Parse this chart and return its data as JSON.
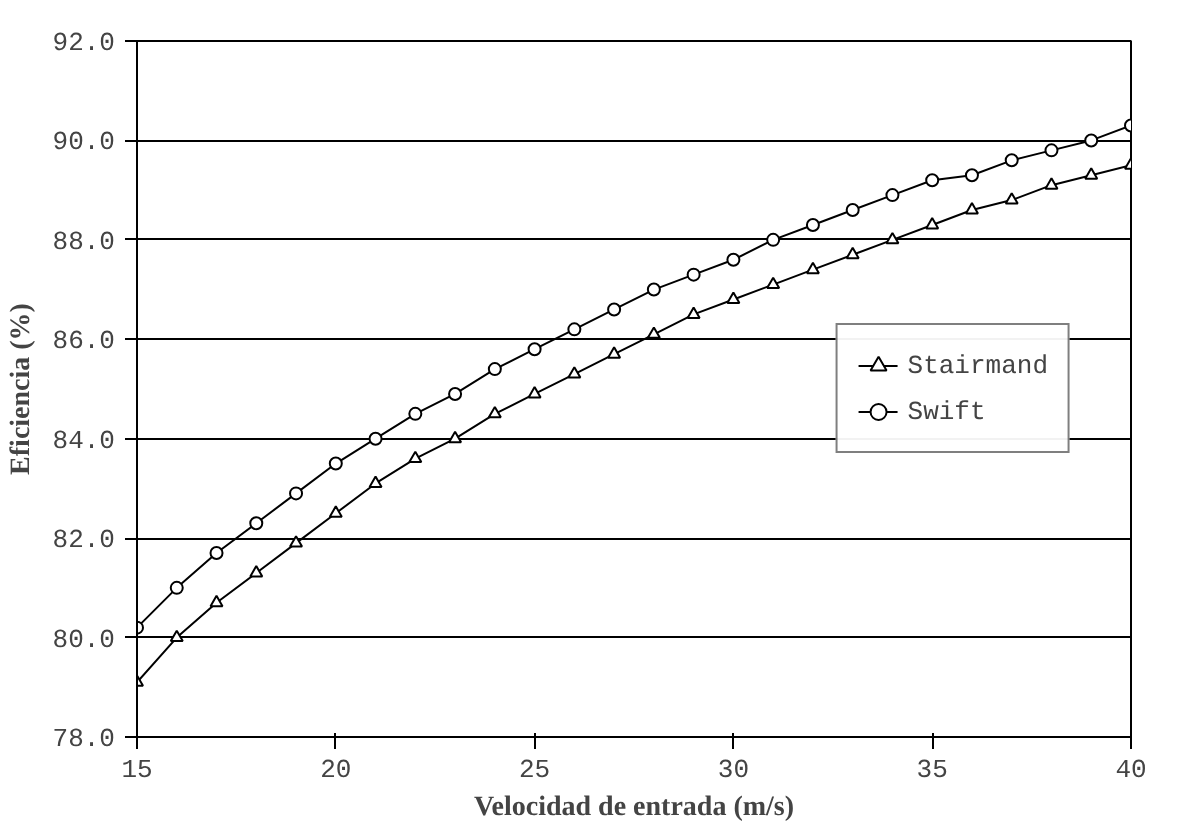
{
  "chart_data": {
    "type": "line",
    "xlabel": "Velocidad de entrada (m/s)",
    "ylabel": "Eficiencia (%)",
    "x": [
      15,
      16,
      17,
      18,
      19,
      20,
      21,
      22,
      23,
      24,
      25,
      26,
      27,
      28,
      29,
      30,
      31,
      32,
      33,
      34,
      35,
      36,
      37,
      38,
      39,
      40
    ],
    "series": [
      {
        "name": "Stairmand",
        "color": "#000000",
        "marker": "triangle",
        "values": [
          79.1,
          80.0,
          80.7,
          81.3,
          81.9,
          82.5,
          83.1,
          83.6,
          84.0,
          84.5,
          84.9,
          85.3,
          85.7,
          86.1,
          86.5,
          86.8,
          87.1,
          87.4,
          87.7,
          88.0,
          88.3,
          88.6,
          88.8,
          89.1,
          89.3,
          89.5
        ]
      },
      {
        "name": "Swift",
        "color": "#000000",
        "marker": "circle",
        "values": [
          80.2,
          81.0,
          81.7,
          82.3,
          82.9,
          83.5,
          84.0,
          84.5,
          84.9,
          85.4,
          85.8,
          86.2,
          86.6,
          87.0,
          87.3,
          87.6,
          88.0,
          88.3,
          88.6,
          88.9,
          89.2,
          89.3,
          89.6,
          89.8,
          90.0,
          90.3
        ]
      }
    ],
    "xlim": [
      15,
      40
    ],
    "xticks": [
      15,
      20,
      25,
      30,
      35,
      40
    ],
    "ylim": [
      78,
      92
    ],
    "yticks": [
      {
        "value": 78,
        "label": "78.0"
      },
      {
        "value": 80,
        "label": "80.0"
      },
      {
        "value": 82,
        "label": "82.0"
      },
      {
        "value": 84,
        "label": "84.0"
      },
      {
        "value": 86,
        "label": "86.0"
      },
      {
        "value": 88,
        "label": "88.0"
      },
      {
        "value": 90,
        "label": "90.0"
      },
      {
        "value": 92,
        "label": "92.0"
      }
    ],
    "grid": "y",
    "legend": "right",
    "line_style": "solid"
  }
}
